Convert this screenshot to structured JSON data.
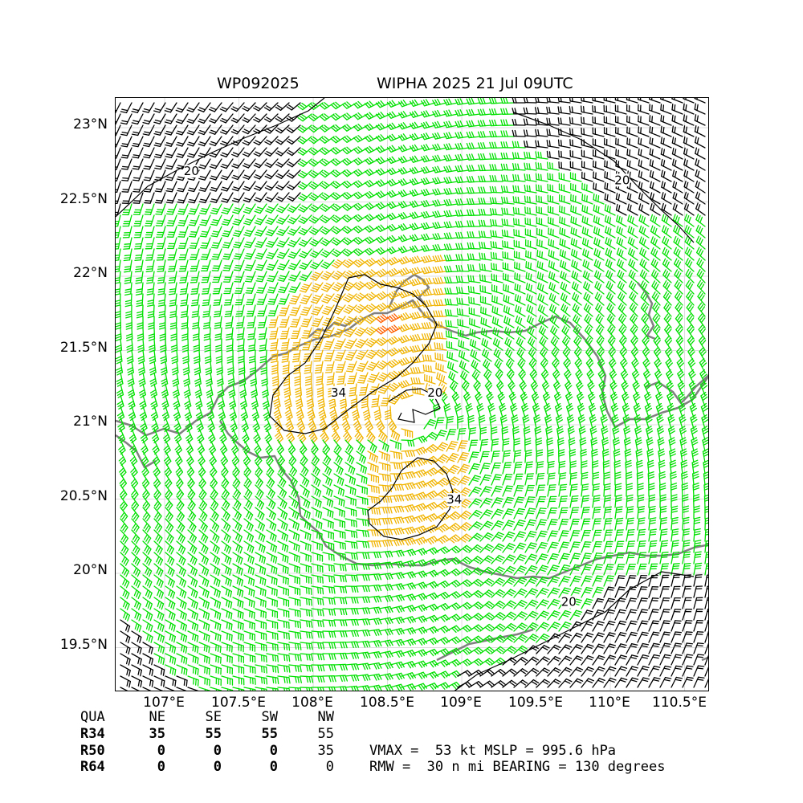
{
  "header": {
    "storm_id": "WP092025",
    "storm_title": "WIPHA 2025 21 Jul 09UTC"
  },
  "map": {
    "lon_range": [
      106.67,
      110.67
    ],
    "lat_range": [
      19.2,
      23.2
    ],
    "lat_ticks": [
      {
        "value": 23.0,
        "label": "23°N"
      },
      {
        "value": 22.5,
        "label": "22.5°N"
      },
      {
        "value": 22.0,
        "label": "22°N"
      },
      {
        "value": 21.5,
        "label": "21.5°N"
      },
      {
        "value": 21.0,
        "label": "21°N"
      },
      {
        "value": 20.5,
        "label": "20.5°N"
      },
      {
        "value": 20.0,
        "label": "20°N"
      },
      {
        "value": 19.5,
        "label": "19.5°N"
      }
    ],
    "lon_ticks": [
      {
        "value": 107.0,
        "label": "107°E"
      },
      {
        "value": 107.5,
        "label": "107.5°E"
      },
      {
        "value": 108.0,
        "label": "108°E"
      },
      {
        "value": 108.5,
        "label": "108.5°E"
      },
      {
        "value": 109.0,
        "label": "109°E"
      },
      {
        "value": 109.5,
        "label": "109.5°E"
      },
      {
        "value": 110.0,
        "label": "110°E"
      },
      {
        "value": 110.5,
        "label": "110.5°E"
      }
    ],
    "center": {
      "lon": 108.67,
      "lat": 21.08
    },
    "grid": true,
    "barb_colors": {
      "weak": "#000000",
      "moderate": "#00e000",
      "strong": "#f0b400",
      "core": "#ff6000"
    },
    "coastline_color": "#808080",
    "contour_labels": [
      {
        "text": "20",
        "lon": 107.18,
        "lat": 22.68
      },
      {
        "text": "20",
        "lon": 110.08,
        "lat": 22.62
      },
      {
        "text": "20",
        "lon": 108.82,
        "lat": 21.19
      },
      {
        "text": "34",
        "lon": 108.17,
        "lat": 21.19
      },
      {
        "text": "34",
        "lon": 108.95,
        "lat": 20.47
      },
      {
        "text": "20",
        "lon": 109.72,
        "lat": 19.78
      }
    ]
  },
  "quadrant_table": {
    "header": [
      "QUA",
      "NE",
      "SE",
      "SW",
      "NW"
    ],
    "rows": [
      {
        "label": "R34",
        "values": [
          "35",
          "55",
          "55",
          "55"
        ]
      },
      {
        "label": "R50",
        "values": [
          "0",
          "0",
          "0",
          "35"
        ]
      },
      {
        "label": "R64",
        "values": [
          "0",
          "0",
          "0",
          "0"
        ]
      }
    ]
  },
  "storm_info": {
    "line1": "VMAX =  53 kt MSLP = 995.6 hPa",
    "line2": "RMW =  30 n mi BEARING = 130 degrees"
  }
}
